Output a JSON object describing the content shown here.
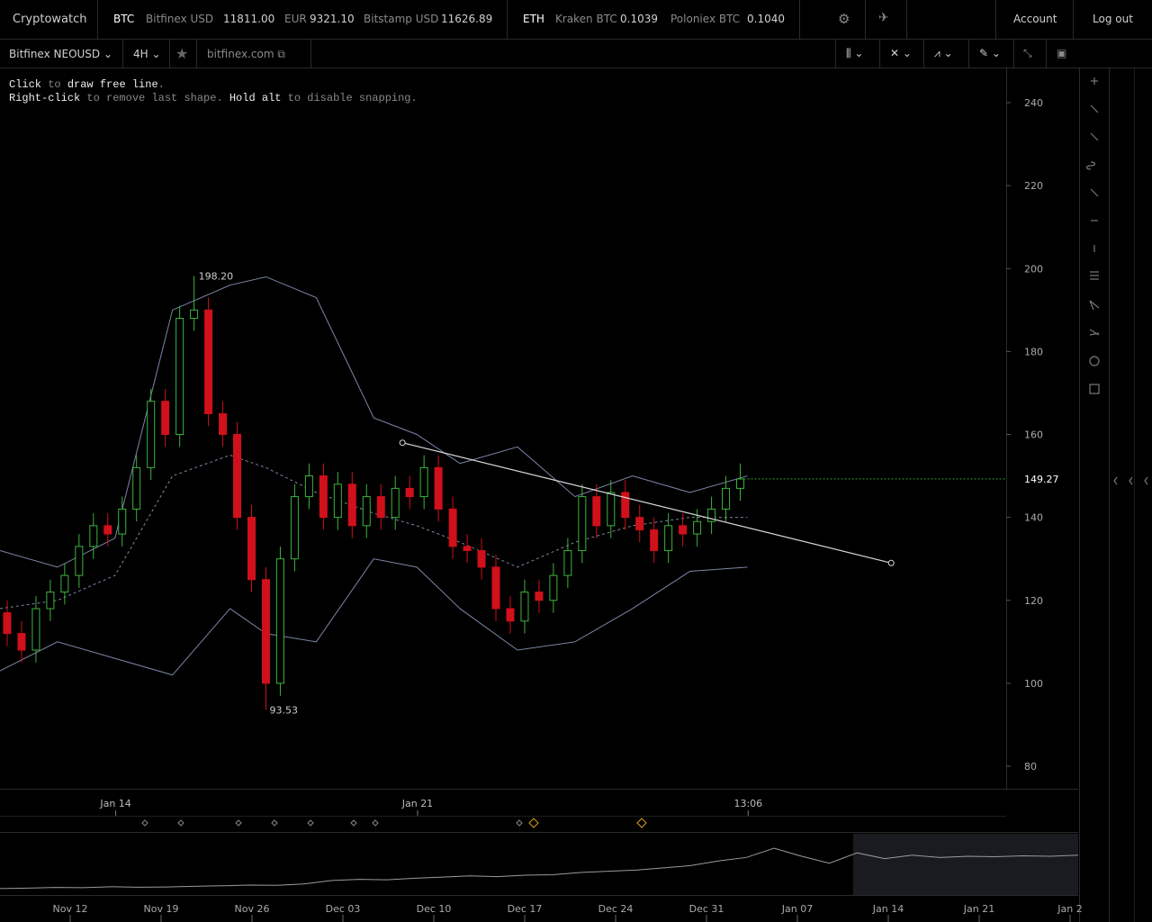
{
  "topbar": {
    "brand": "Cryptowatch",
    "btc": "BTC",
    "btc_quotes": [
      {
        "label": "Bitfinex USD",
        "value": "11811.00"
      },
      {
        "label": "EUR",
        "value": "9321.10"
      },
      {
        "label": "Bitstamp USD",
        "value": "11626.89"
      }
    ],
    "eth": "ETH",
    "eth_quotes": [
      {
        "label": "Kraken BTC",
        "value": "0.1039"
      },
      {
        "label": "Poloniex BTC",
        "value": "0.1040"
      }
    ],
    "account": "Account",
    "logout": "Log out"
  },
  "toolbar": {
    "market": "Bitfinex NEOUSD",
    "period": "4H",
    "exchange": "bitfinex.com"
  },
  "hint": {
    "line1": [
      "Click",
      " to ",
      "draw free line",
      "."
    ],
    "line2": [
      "Right-click",
      " to remove last shape. ",
      "Hold alt",
      " to disable snapping."
    ]
  },
  "chart_data": {
    "type": "candlestick",
    "x": [
      1,
      3,
      5,
      7,
      9,
      11,
      13,
      15,
      17,
      19,
      21,
      23,
      25,
      27,
      29,
      31,
      33,
      35,
      37,
      39,
      41,
      43,
      45,
      47,
      49,
      51,
      53,
      55,
      57,
      59,
      61,
      63,
      65,
      67,
      69,
      71,
      73,
      75,
      77,
      79,
      81,
      83,
      85,
      87,
      89,
      91,
      93,
      95,
      97,
      99,
      101,
      103
    ],
    "open": [
      117,
      112,
      108,
      118,
      122,
      126,
      133,
      138,
      136,
      142,
      152,
      168,
      160,
      188,
      190,
      165,
      160,
      140,
      125,
      100,
      130,
      145,
      150,
      140,
      148,
      138,
      145,
      140,
      147,
      145,
      152,
      142,
      133,
      132,
      128,
      118,
      115,
      122,
      120,
      126,
      132,
      145,
      138,
      146,
      140,
      137,
      132,
      138,
      136,
      139,
      142,
      147
    ],
    "high": [
      120,
      115,
      121,
      125,
      129,
      136,
      141,
      141,
      145,
      155,
      171,
      171,
      191,
      198.2,
      193,
      168,
      163,
      143,
      128,
      133,
      148,
      153,
      153,
      151,
      151,
      148,
      148,
      150,
      150,
      155,
      155,
      145,
      136,
      135,
      131,
      121,
      125,
      125,
      129,
      135,
      148,
      148,
      149,
      149,
      143,
      140,
      141,
      141,
      142,
      145,
      150,
      153
    ],
    "low": [
      109,
      105,
      105,
      115,
      119,
      123,
      130,
      133,
      133,
      139,
      149,
      157,
      157,
      185,
      162,
      157,
      137,
      122,
      93.53,
      97,
      127,
      142,
      137,
      137,
      135,
      135,
      137,
      137,
      142,
      142,
      139,
      130,
      129,
      125,
      115,
      112,
      112,
      117,
      117,
      123,
      129,
      135,
      135,
      137,
      134,
      129,
      129,
      133,
      133,
      136,
      139,
      144
    ],
    "close": [
      112,
      108,
      118,
      122,
      126,
      133,
      138,
      136,
      142,
      152,
      168,
      160,
      188,
      190,
      165,
      160,
      140,
      125,
      100,
      130,
      145,
      150,
      140,
      148,
      138,
      145,
      140,
      147,
      145,
      152,
      142,
      133,
      132,
      128,
      118,
      115,
      122,
      120,
      126,
      132,
      145,
      138,
      146,
      140,
      137,
      132,
      138,
      136,
      139,
      142,
      147,
      149.27
    ],
    "up_color": "#3cb33c",
    "down_color": "#d0101b",
    "xlim": [
      0,
      140
    ],
    "xticks": [
      {
        "value": 16.1,
        "label": "Jan 14"
      },
      {
        "value": 58.1,
        "label": "Jan 21"
      },
      {
        "value": 104.1,
        "label": "13:06"
      }
    ],
    "ylim": [
      80,
      240
    ],
    "yticks": [
      80,
      100,
      120,
      140,
      160,
      180,
      200,
      220,
      240
    ],
    "bands": {
      "x": [
        0,
        8,
        16,
        24,
        32,
        37,
        44,
        52,
        58,
        64,
        72,
        80,
        88,
        96,
        104
      ],
      "upper": [
        132,
        128,
        135,
        190,
        196,
        198,
        193,
        164,
        160,
        153,
        157,
        145,
        150,
        146,
        150
      ],
      "middle": [
        118,
        120,
        126,
        150,
        155,
        152,
        146,
        141,
        138,
        134,
        128,
        134,
        138,
        140,
        140
      ],
      "lower": [
        103,
        110,
        106,
        102,
        118,
        112,
        110,
        130,
        128,
        118,
        108,
        110,
        118,
        127,
        128
      ],
      "color": "#7b86a6"
    },
    "trendline": {
      "x": [
        56,
        124
      ],
      "y": [
        158,
        129
      ],
      "color": "#d8d8d8"
    },
    "high_label": {
      "value": 198.2,
      "label": "198.20"
    },
    "low_label": {
      "value": 93.53,
      "label": "93.53"
    },
    "last_price": {
      "value": 149.27,
      "label": "149.27"
    }
  },
  "navigator": {
    "values": [
      20,
      22,
      25,
      24,
      28,
      26,
      27,
      30,
      32,
      35,
      34,
      40,
      55,
      60,
      58,
      65,
      70,
      75,
      72,
      78,
      80,
      90,
      95,
      100,
      110,
      120,
      140,
      155,
      195,
      160,
      130,
      175,
      150,
      165,
      155,
      160,
      158,
      162,
      160,
      165
    ],
    "ylim": [
      0,
      250
    ],
    "labels": [
      "Nov 12",
      "Nov 19",
      "Nov 26",
      "Dec 03",
      "Dec 10",
      "Dec 17",
      "Dec 24",
      "Dec 31",
      "Jan 07",
      "Jan 14",
      "Jan 21",
      "Jan 2"
    ]
  }
}
